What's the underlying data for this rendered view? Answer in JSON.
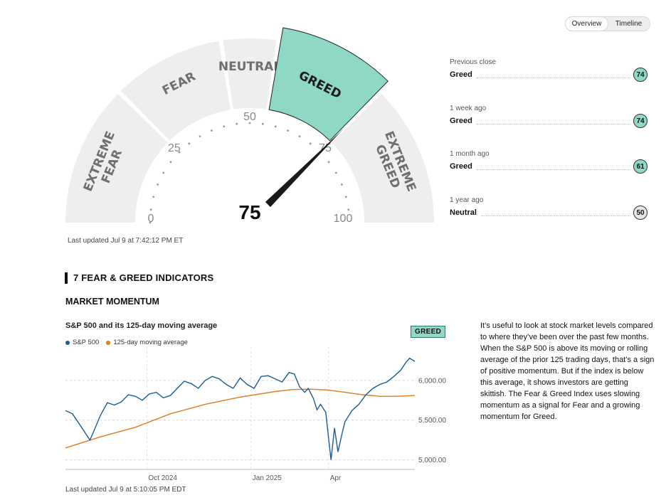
{
  "tabs": {
    "overview": "Overview",
    "timeline": "Timeline"
  },
  "gauge": {
    "value": "75",
    "score": 75,
    "segments": [
      {
        "label1": "EXTREME",
        "label2": "FEAR"
      },
      {
        "label1": "FEAR",
        "label2": ""
      },
      {
        "label1": "NEUTRAL",
        "label2": ""
      },
      {
        "label1": "GREED",
        "label2": ""
      },
      {
        "label1": "EXTREME",
        "label2": "GREED"
      }
    ],
    "ticks": {
      "t0": "0",
      "t25": "25",
      "t50": "50",
      "t75": "75",
      "t100": "100"
    },
    "segment_color": "#eeeeee",
    "active_color": "#8fd8c5",
    "last_updated": "Last updated Jul 9 at 7:42:12 PM ET"
  },
  "history": [
    {
      "when": "Previous close",
      "rating": "Greed",
      "value": "74",
      "color": "#8fd8c5"
    },
    {
      "when": "1 week ago",
      "rating": "Greed",
      "value": "74",
      "color": "#8fd8c5"
    },
    {
      "when": "1 month ago",
      "rating": "Greed",
      "value": "61",
      "color": "#8fd8c5"
    },
    {
      "when": "1 year ago",
      "rating": "Neutral",
      "value": "50",
      "color": "#e6e6e6"
    }
  ],
  "indicators": {
    "section_title": "7 FEAR & GREED INDICATORS",
    "momentum_title": "MARKET MOMENTUM",
    "chart_title": "S&P 500 and its 125-day moving average",
    "badge": "GREED",
    "description": "It’s useful to look at stock market levels compared to where they’ve been over the past few months. When the S&P 500 is above its moving or rolling average of the prior 125 trading days, that’s a sign of positive momentum. But if the index is below this average, it shows investors are getting skittish. The Fear & Greed Index uses slowing momentum as a signal for Fear and a growing momentum for Greed.",
    "last_updated": "Last updated Jul 9 at 5:10:05 PM EDT"
  },
  "chart_data": {
    "type": "line",
    "title": "S&P 500 and its 125-day moving average",
    "x_ticks": [
      "Oct 2024",
      "Jan 2025",
      "Apr"
    ],
    "x_tick_positions": [
      0.233,
      0.531,
      0.753
    ],
    "y_ticks": [
      "6,000.00",
      "5,500.00",
      "5,000.00"
    ],
    "y_tick_values": [
      6000,
      5500,
      5000
    ],
    "ylim": [
      4880,
      6330
    ],
    "grid": "horizontal dashed",
    "series": [
      {
        "name": "S&P 500",
        "color": "#1a5c8e",
        "points": [
          [
            0.0,
            5620
          ],
          [
            0.02,
            5580
          ],
          [
            0.04,
            5450
          ],
          [
            0.055,
            5350
          ],
          [
            0.07,
            5250
          ],
          [
            0.085,
            5400
          ],
          [
            0.1,
            5560
          ],
          [
            0.12,
            5720
          ],
          [
            0.14,
            5690
          ],
          [
            0.16,
            5730
          ],
          [
            0.18,
            5820
          ],
          [
            0.2,
            5800
          ],
          [
            0.22,
            5750
          ],
          [
            0.24,
            5830
          ],
          [
            0.26,
            5850
          ],
          [
            0.28,
            5780
          ],
          [
            0.3,
            5810
          ],
          [
            0.32,
            5900
          ],
          [
            0.34,
            5990
          ],
          [
            0.36,
            5960
          ],
          [
            0.38,
            5900
          ],
          [
            0.4,
            6000
          ],
          [
            0.42,
            6050
          ],
          [
            0.44,
            6020
          ],
          [
            0.46,
            5950
          ],
          [
            0.48,
            5900
          ],
          [
            0.5,
            6030
          ],
          [
            0.52,
            5950
          ],
          [
            0.54,
            5900
          ],
          [
            0.56,
            6050
          ],
          [
            0.58,
            6060
          ],
          [
            0.6,
            6020
          ],
          [
            0.62,
            5980
          ],
          [
            0.64,
            6100
          ],
          [
            0.655,
            6080
          ],
          [
            0.67,
            5920
          ],
          [
            0.685,
            5850
          ],
          [
            0.695,
            5900
          ],
          [
            0.71,
            5770
          ],
          [
            0.72,
            5630
          ],
          [
            0.73,
            5700
          ],
          [
            0.745,
            5600
          ],
          [
            0.755,
            5200
          ],
          [
            0.76,
            5000
          ],
          [
            0.77,
            5400
          ],
          [
            0.78,
            5100
          ],
          [
            0.79,
            5300
          ],
          [
            0.8,
            5480
          ],
          [
            0.82,
            5620
          ],
          [
            0.84,
            5700
          ],
          [
            0.86,
            5820
          ],
          [
            0.88,
            5900
          ],
          [
            0.9,
            5950
          ],
          [
            0.92,
            5980
          ],
          [
            0.94,
            6050
          ],
          [
            0.96,
            6130
          ],
          [
            0.975,
            6230
          ],
          [
            0.985,
            6280
          ],
          [
            1.0,
            6240
          ]
        ]
      },
      {
        "name": "125-day moving average",
        "color": "#e07a1f",
        "points": [
          [
            0.0,
            5150
          ],
          [
            0.1,
            5290
          ],
          [
            0.2,
            5410
          ],
          [
            0.3,
            5580
          ],
          [
            0.4,
            5700
          ],
          [
            0.5,
            5790
          ],
          [
            0.6,
            5860
          ],
          [
            0.65,
            5885
          ],
          [
            0.7,
            5890
          ],
          [
            0.75,
            5880
          ],
          [
            0.8,
            5850
          ],
          [
            0.85,
            5820
          ],
          [
            0.9,
            5800
          ],
          [
            0.95,
            5800
          ],
          [
            1.0,
            5810
          ]
        ]
      }
    ]
  }
}
